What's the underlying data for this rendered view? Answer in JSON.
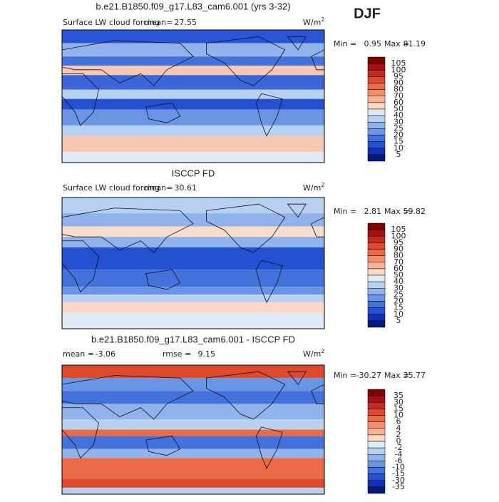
{
  "season": "DJF",
  "panels": [
    {
      "title": "b.e21.B1850.f09_g17.L83_cam6.001 (yrs 3-32)",
      "variable": "Surface LW cloud forcing",
      "stats": [
        {
          "label": "mean=",
          "value": "27.55"
        }
      ],
      "units": "W/m",
      "units_exponent": "2",
      "min_label": "Min =",
      "min": "0.95",
      "max_label": "Max =",
      "max": "81.19",
      "colorbar": {
        "labels": [
          "105",
          "100",
          "95",
          "90",
          "80",
          "70",
          "60",
          "50",
          "40",
          "30",
          "25",
          "20",
          "15",
          "10",
          "5"
        ],
        "colors": [
          "#7f0000",
          "#a50f15",
          "#c62a1f",
          "#dd4a2e",
          "#ec6b47",
          "#f38f6c",
          "#f8b396",
          "#fcd9c4",
          "#dfeaf7",
          "#b8d1f0",
          "#8fb3ea",
          "#6a94e4",
          "#4472dd",
          "#2450d2",
          "#0f30b8",
          "#061a7a"
        ]
      },
      "bands": [
        [
          0,
          "#2a55d6"
        ],
        [
          0.1,
          "#8fb3ea"
        ],
        [
          0.2,
          "#4472dd"
        ],
        [
          0.27,
          "#f8c9b0"
        ],
        [
          0.34,
          "#3a66da"
        ],
        [
          0.45,
          "#b8d1f0"
        ],
        [
          0.52,
          "#2450d2"
        ],
        [
          0.6,
          "#6a94e4"
        ],
        [
          0.72,
          "#b8d1f0"
        ],
        [
          0.8,
          "#f8c9b0"
        ],
        [
          0.92,
          "#dfeaf7"
        ]
      ]
    },
    {
      "title": "ISCCP FD",
      "variable": "Surface LW cloud forcing",
      "stats": [
        {
          "label": "mean=",
          "value": "30.61"
        }
      ],
      "units": "W/m",
      "units_exponent": "2",
      "min_label": "Min =",
      "min": "2.81",
      "max_label": "Max =",
      "max": "59.82",
      "colorbar": {
        "labels": [
          "105",
          "100",
          "95",
          "90",
          "80",
          "70",
          "60",
          "50",
          "40",
          "30",
          "25",
          "20",
          "15",
          "10",
          "5"
        ],
        "colors": [
          "#7f0000",
          "#a50f15",
          "#c62a1f",
          "#dd4a2e",
          "#ec6b47",
          "#f38f6c",
          "#f8b396",
          "#fcd9c4",
          "#dfeaf7",
          "#b8d1f0",
          "#8fb3ea",
          "#6a94e4",
          "#4472dd",
          "#2450d2",
          "#0f30b8",
          "#061a7a"
        ]
      },
      "bands": [
        [
          0,
          "#b8d1f0"
        ],
        [
          0.12,
          "#8fb3ea"
        ],
        [
          0.22,
          "#f8dccc"
        ],
        [
          0.3,
          "#8fb3ea"
        ],
        [
          0.38,
          "#2450d2"
        ],
        [
          0.55,
          "#4472dd"
        ],
        [
          0.68,
          "#6a94e4"
        ],
        [
          0.74,
          "#b8d1f0"
        ],
        [
          0.8,
          "#fcd9c4"
        ],
        [
          0.88,
          "#dfeaf7"
        ]
      ]
    },
    {
      "title": "b.e21.B1850.f09_g17.L83_cam6.001 - ISCCP FD",
      "variable": null,
      "stats": [
        {
          "label": "mean =",
          "value": "-3.06"
        },
        {
          "label": "rmse =",
          "value": "9.15"
        }
      ],
      "units": "W/m",
      "units_exponent": "2",
      "min_label": "Min =",
      "min": "-30.27",
      "max_label": "Max =",
      "max": "35.77",
      "colorbar": {
        "labels": [
          "35",
          "30",
          "15",
          "10",
          "6",
          "4",
          "2",
          "0",
          "-2",
          "-4",
          "-6",
          "-10",
          "-15",
          "-30",
          "-35"
        ],
        "colors": [
          "#7f0000",
          "#a50f15",
          "#c62a1f",
          "#dd4a2e",
          "#ec6b47",
          "#f38f6c",
          "#f8b396",
          "#fcd9c4",
          "#dfeaf7",
          "#b8d1f0",
          "#8fb3ea",
          "#6a94e4",
          "#4472dd",
          "#2450d2",
          "#0f30b8",
          "#061a7a"
        ]
      },
      "bands": [
        [
          0,
          "#dd4a2e"
        ],
        [
          0.1,
          "#6a94e4"
        ],
        [
          0.2,
          "#4472dd"
        ],
        [
          0.3,
          "#8fb3ea"
        ],
        [
          0.42,
          "#b8d1f0"
        ],
        [
          0.5,
          "#ec6b47"
        ],
        [
          0.55,
          "#4472dd"
        ],
        [
          0.65,
          "#8fb3ea"
        ],
        [
          0.72,
          "#ec6b47"
        ],
        [
          0.88,
          "#dd4a2e"
        ],
        [
          0.95,
          "#b8d1f0"
        ]
      ]
    }
  ]
}
